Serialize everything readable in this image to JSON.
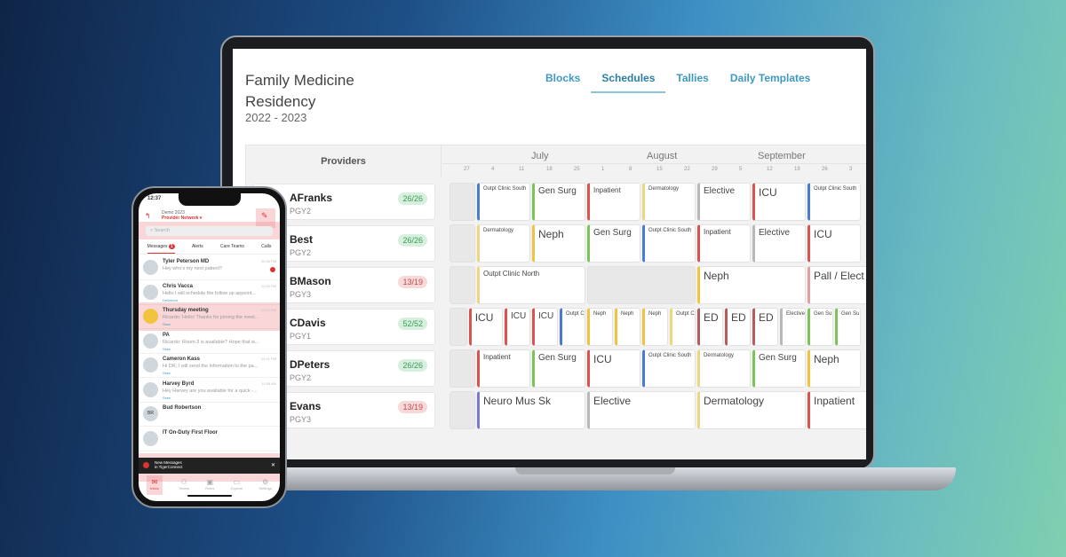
{
  "app": {
    "title_line1": "Family Medicine",
    "title_line2": "Residency",
    "year": "2022 - 2023"
  },
  "nav": [
    {
      "label": "Blocks"
    },
    {
      "label": "Schedules",
      "active": true
    },
    {
      "label": "Tallies"
    },
    {
      "label": "Daily Templates"
    }
  ],
  "grid": {
    "providers_header": "Providers",
    "months": [
      "July",
      "August",
      "September"
    ],
    "weeks": [
      "27",
      "4",
      "11",
      "18",
      "25",
      "1",
      "8",
      "15",
      "22",
      "29",
      "5",
      "12",
      "19",
      "26",
      "3"
    ]
  },
  "colors": {
    "red": "#d9534f",
    "green": "#7cc35a",
    "blue": "#4a7bd0",
    "yellow": "#f2c33c",
    "lightyellow": "#ecd67e",
    "grey": "#b8b8b8",
    "purple": "#7a7ad6",
    "rose": "#e0a0a0",
    "darkred": "#b75c5c",
    "badge_ok_bg": "#d7f0dd",
    "badge_ok_fg": "#3c9a56",
    "badge_bad_bg": "#f7d9d9",
    "badge_bad_fg": "#c24a4a"
  },
  "providers": [
    {
      "name": "AFranks",
      "pgy": "PGY2",
      "tally": "26/26",
      "ok": true,
      "blocks": [
        {
          "w": 1,
          "gray": true
        },
        {
          "w": 2,
          "label": "Outpt Clinic South",
          "c": "blue",
          "s": "xs"
        },
        {
          "w": 2,
          "label": "Gen Surg",
          "c": "green"
        },
        {
          "w": 2,
          "label": "Inpatient",
          "c": "red",
          "s": "sm"
        },
        {
          "w": 2,
          "label": "Dermatology",
          "c": "lightyellow",
          "s": "xs"
        },
        {
          "w": 2,
          "label": "Elective",
          "c": "grey"
        },
        {
          "w": 2,
          "label": "ICU",
          "c": "red",
          "s": "lg"
        },
        {
          "w": 2,
          "label": "Outpt Clinic South",
          "c": "blue",
          "s": "xs"
        }
      ]
    },
    {
      "name": "Best",
      "pgy": "PGY2",
      "tally": "26/26",
      "ok": true,
      "blocks": [
        {
          "w": 1,
          "gray": true
        },
        {
          "w": 2,
          "label": "Dermatology",
          "c": "lightyellow",
          "s": "xs"
        },
        {
          "w": 2,
          "label": "Neph",
          "c": "yellow",
          "s": "lg"
        },
        {
          "w": 2,
          "label": "Gen Surg",
          "c": "green"
        },
        {
          "w": 2,
          "label": "Outpt Clinic South",
          "c": "blue",
          "s": "xs"
        },
        {
          "w": 2,
          "label": "Inpatient",
          "c": "red",
          "s": "sm"
        },
        {
          "w": 2,
          "label": "Elective",
          "c": "grey"
        },
        {
          "w": 2,
          "label": "ICU",
          "c": "red",
          "s": "lg"
        }
      ]
    },
    {
      "name": "BMason",
      "pgy": "PGY3",
      "tally": "13/19",
      "ok": false,
      "blocks": [
        {
          "w": 1,
          "gray": true
        },
        {
          "w": 4,
          "label": "Outpt Clinic North",
          "c": "lightyellow",
          "s": "sm"
        },
        {
          "w": 4,
          "gray": true
        },
        {
          "w": 4,
          "label": "Neph",
          "c": "yellow",
          "s": "lg"
        },
        {
          "w": 4,
          "label": "Pall / Elect",
          "c": "rose",
          "s": "lg"
        }
      ]
    },
    {
      "name": "CDavis",
      "pgy": "PGY1",
      "tally": "52/52",
      "ok": true,
      "blocks": [
        {
          "w": 0.7,
          "gray": true
        },
        {
          "w": 1.3,
          "label": "ICU",
          "c": "red",
          "s": "lg"
        },
        {
          "w": 1,
          "label": "ICU",
          "c": "red"
        },
        {
          "w": 1,
          "label": "ICU",
          "c": "red"
        },
        {
          "w": 1,
          "label": "Outpt C",
          "c": "blue",
          "s": "xs"
        },
        {
          "w": 1,
          "label": "Neph",
          "c": "yellow",
          "s": "xs"
        },
        {
          "w": 1,
          "label": "Neph",
          "c": "yellow",
          "s": "xs"
        },
        {
          "w": 1,
          "label": "Neph",
          "c": "yellow",
          "s": "xs"
        },
        {
          "w": 1,
          "label": "Outpt C",
          "c": "lightyellow",
          "s": "xs"
        },
        {
          "w": 1,
          "label": "ED",
          "c": "darkred",
          "s": "lg"
        },
        {
          "w": 1,
          "label": "ED",
          "c": "darkred",
          "s": "lg"
        },
        {
          "w": 1,
          "label": "ED",
          "c": "darkred",
          "s": "lg"
        },
        {
          "w": 1,
          "label": "Elective",
          "c": "grey",
          "s": "xs"
        },
        {
          "w": 1,
          "label": "Gen Su",
          "c": "green",
          "s": "xs"
        },
        {
          "w": 1,
          "label": "Gen Su",
          "c": "green",
          "s": "xs"
        }
      ]
    },
    {
      "name": "DPeters",
      "pgy": "PGY2",
      "tally": "26/26",
      "ok": true,
      "blocks": [
        {
          "w": 1,
          "gray": true
        },
        {
          "w": 2,
          "label": "Inpatient",
          "c": "red",
          "s": "sm"
        },
        {
          "w": 2,
          "label": "Gen Surg",
          "c": "green"
        },
        {
          "w": 2,
          "label": "ICU",
          "c": "red",
          "s": "lg"
        },
        {
          "w": 2,
          "label": "Outpt Clinic South",
          "c": "blue",
          "s": "xs"
        },
        {
          "w": 2,
          "label": "Dermatology",
          "c": "lightyellow",
          "s": "xs"
        },
        {
          "w": 2,
          "label": "Gen Surg",
          "c": "green"
        },
        {
          "w": 2,
          "label": "Neph",
          "c": "yellow",
          "s": "lg"
        }
      ]
    },
    {
      "name": "Evans",
      "pgy": "PGY3",
      "tally": "13/19",
      "ok": false,
      "blocks": [
        {
          "w": 1,
          "gray": true
        },
        {
          "w": 4,
          "label": "Neuro Mus Sk",
          "c": "purple",
          "s": "lg"
        },
        {
          "w": 4,
          "label": "Elective",
          "c": "grey",
          "s": "lg"
        },
        {
          "w": 4,
          "label": "Dermatology",
          "c": "lightyellow",
          "s": "lg"
        },
        {
          "w": 4,
          "label": "Inpatient",
          "c": "red",
          "s": "lg"
        }
      ]
    }
  ],
  "phone": {
    "time": "12:37",
    "org": "Demo 2023",
    "network": "Provider Network ▾",
    "search_placeholder": "Search",
    "tabs": [
      "Messages",
      "Alerts",
      "Care Teams",
      "Calls"
    ],
    "messages_badge": "1",
    "messages": [
      {
        "name": "Tyler Peterson MD",
        "preview": "Hey who's my next patient?",
        "time": "12:36 PM",
        "unread": true
      },
      {
        "name": "Chris Vacca",
        "preview": "Hello I will schedule the follow up appoint...",
        "time": "12:33 PM",
        "tag": "Delivered"
      },
      {
        "name": "Thursday meeting",
        "preview": "Ricardo: Hello! Thanks for joining the meet...",
        "time": "12:07 PM",
        "tag": "Seen",
        "group": true
      },
      {
        "name": "PA",
        "preview": "Ricardo: Room 3 is available? Hope that w...",
        "time": "",
        "tag": "Seen"
      },
      {
        "name": "Cameron Kass",
        "preview": "Hi DR, I will send the information to the pa...",
        "time": "12:01 PM",
        "tag": "Seen"
      },
      {
        "name": "Harvey Byrd",
        "preview": "Hey Harvey are you available for a quick -...",
        "time": "11:55 AM",
        "tag": "Seen"
      },
      {
        "name": "Bud Robertson",
        "preview": "",
        "time": "",
        "initials": "BR"
      },
      {
        "name": "IT On-Duty First Floor",
        "preview": "",
        "time": ""
      }
    ],
    "toast_line1": "New Messages",
    "toast_line2": "in TigerConnect",
    "bottom_nav": [
      "Inbox",
      "Teams",
      "Roles",
      "Explore",
      "Settings"
    ],
    "inbox_badge": "1"
  }
}
